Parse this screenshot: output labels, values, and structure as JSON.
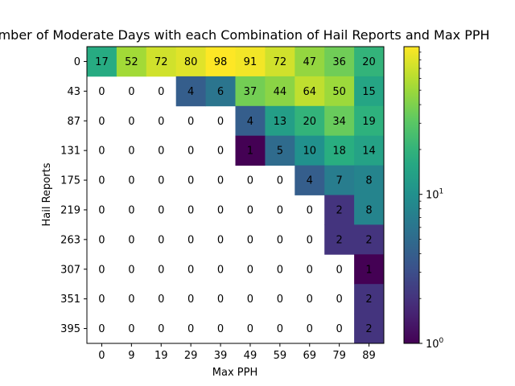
{
  "chart_data": {
    "type": "heatmap",
    "title": "Number of Moderate Days with each Combination of Hail Reports and Max PPH",
    "xlabel": "Max PPH",
    "ylabel": "Hail Reports",
    "x_categories": [
      "0",
      "9",
      "19",
      "29",
      "39",
      "49",
      "59",
      "69",
      "79",
      "89"
    ],
    "y_categories": [
      "0",
      "43",
      "87",
      "131",
      "175",
      "219",
      "263",
      "307",
      "351",
      "395"
    ],
    "values": [
      [
        17,
        52,
        72,
        80,
        98,
        91,
        72,
        47,
        36,
        20
      ],
      [
        0,
        0,
        0,
        4,
        6,
        37,
        44,
        64,
        50,
        15
      ],
      [
        0,
        0,
        0,
        0,
        0,
        4,
        13,
        20,
        34,
        19
      ],
      [
        0,
        0,
        0,
        0,
        0,
        1,
        5,
        10,
        18,
        14
      ],
      [
        0,
        0,
        0,
        0,
        0,
        0,
        0,
        4,
        7,
        8
      ],
      [
        0,
        0,
        0,
        0,
        0,
        0,
        0,
        0,
        2,
        8
      ],
      [
        0,
        0,
        0,
        0,
        0,
        0,
        0,
        0,
        2,
        2
      ],
      [
        0,
        0,
        0,
        0,
        0,
        0,
        0,
        0,
        0,
        1
      ],
      [
        0,
        0,
        0,
        0,
        0,
        0,
        0,
        0,
        0,
        2
      ],
      [
        0,
        0,
        0,
        0,
        0,
        0,
        0,
        0,
        0,
        2
      ]
    ],
    "zero_cells": "blank",
    "colormap": "viridis",
    "color_scale": "log",
    "colorbar": {
      "range": [
        1,
        98
      ],
      "major_tick_labels": [
        "10^0",
        "10^1"
      ]
    },
    "grid": false
  }
}
